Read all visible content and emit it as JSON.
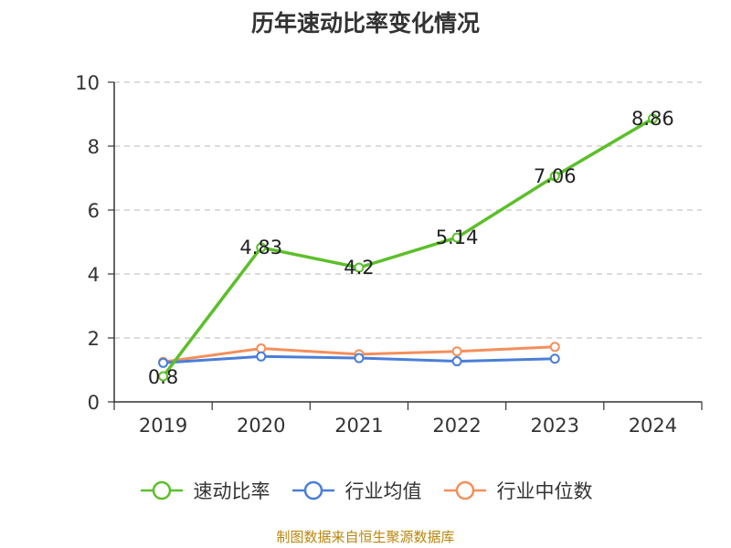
{
  "page": {
    "title": "历年速动比率变化情况",
    "source": "制图数据来自恒生聚源数据库"
  },
  "colors": {
    "series": [
      "#5cbf2a",
      "#4a7ed8",
      "#f48f5a"
    ],
    "axis": "#333333",
    "grid": "#c8c8c8"
  },
  "chart_data": {
    "type": "line",
    "title": "历年速动比率变化情况",
    "categories": [
      "2019",
      "2020",
      "2021",
      "2022",
      "2023",
      "2024"
    ],
    "ylim": [
      0,
      10
    ],
    "yticks": [
      0,
      2,
      4,
      6,
      8,
      10
    ],
    "grid": true,
    "legend_position": "bottom",
    "series": [
      {
        "name": "速动比率",
        "values": [
          0.8,
          4.83,
          4.2,
          5.14,
          7.06,
          8.86
        ],
        "labels": [
          "0.8",
          "4.83",
          "4.2",
          "5.14",
          "7.06",
          "8.86"
        ]
      },
      {
        "name": "行业均值",
        "values": [
          1.22,
          1.42,
          1.37,
          1.27,
          1.35,
          null
        ]
      },
      {
        "name": "行业中位数",
        "values": [
          1.25,
          1.67,
          1.49,
          1.58,
          1.72,
          null
        ]
      }
    ]
  }
}
